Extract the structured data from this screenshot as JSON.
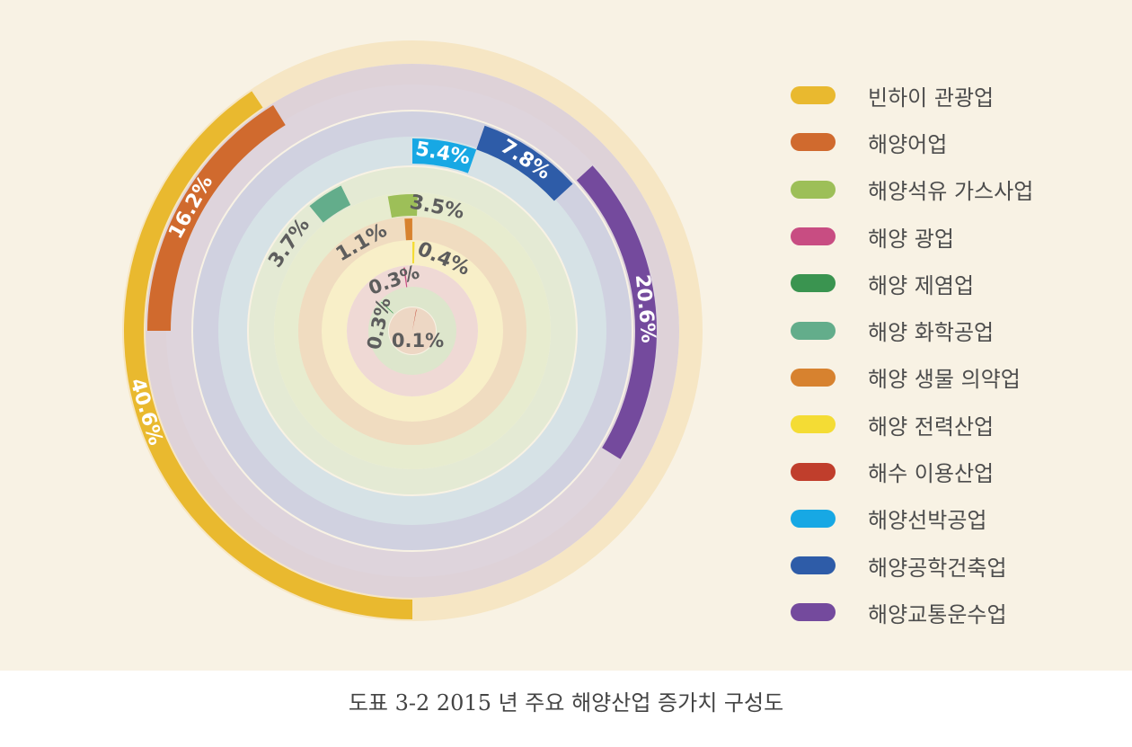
{
  "chart_data": {
    "type": "radial-bar",
    "caption": "도표 3-2 2015 년 주요 해양산업 증가치 구성도",
    "legend_position": "right",
    "series": [
      {
        "name": "빈하이 관광업",
        "value": 40.6,
        "label": "40.6%",
        "color": "#e9b92f",
        "track": "#f6e6c4"
      },
      {
        "name": "해양어업",
        "value": 16.2,
        "label": "16.2%",
        "color": "#d06a2e",
        "track": "#ded2d8"
      },
      {
        "name": "해양석유 가스사업",
        "value": 3.5,
        "label": "3.5%",
        "color": "#9dbf58",
        "track": "#e7eccf"
      },
      {
        "name": "해양 광업",
        "value": 0.3,
        "label": "0.3%",
        "color": "#c84d82",
        "track": "#efd9d5"
      },
      {
        "name": "해양 제염업",
        "value": 0.3,
        "label": "0.3%",
        "color": "#3a9450",
        "track": "#dde6cc"
      },
      {
        "name": "해양 화학공업",
        "value": 3.7,
        "label": "3.7%",
        "color": "#63ad8b",
        "track": "#e4ead4"
      },
      {
        "name": "해양 생물 의약업",
        "value": 1.1,
        "label": "1.1%",
        "color": "#d7822f",
        "track": "#f0dcc0"
      },
      {
        "name": "해양 전력산업",
        "value": 0.4,
        "label": "0.4%",
        "color": "#f4dc34",
        "track": "#f8efc8"
      },
      {
        "name": "해수 이용산업",
        "value": 0.1,
        "label": "0.1%",
        "color": "#c03e2c",
        "track": "#edd7c4"
      },
      {
        "name": "해양선박공업",
        "value": 5.4,
        "label": "5.4%",
        "color": "#17a8e4",
        "track": "#d6e2e6"
      },
      {
        "name": "해양공학건축업",
        "value": 7.8,
        "label": "7.8%",
        "color": "#2e5ca8",
        "track": "#d0d1e0"
      },
      {
        "name": "해양교통운수업",
        "value": 20.6,
        "label": "20.6%",
        "color": "#744a9d",
        "track": "#ded4dc"
      }
    ]
  }
}
